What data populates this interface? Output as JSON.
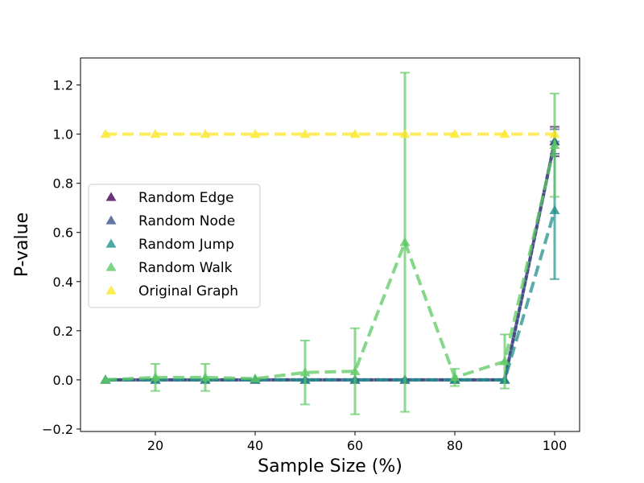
{
  "chart_data": {
    "type": "line",
    "title": "",
    "xlabel": "Sample Size (%)",
    "ylabel": "P-value",
    "xlim": [
      5,
      105
    ],
    "ylim": [
      -0.21,
      1.31
    ],
    "x_ticks": [
      20,
      40,
      60,
      80,
      100
    ],
    "y_ticks": [
      -0.2,
      0.0,
      0.2,
      0.4,
      0.6,
      0.8,
      1.0,
      1.2
    ],
    "y_tick_labels": [
      "−0.2",
      "0.0",
      "0.2",
      "0.4",
      "0.6",
      "0.8",
      "1.0",
      "1.2"
    ],
    "grid": false,
    "legend_position": "center-left",
    "x": [
      10,
      20,
      30,
      40,
      50,
      60,
      70,
      80,
      90,
      100
    ],
    "series": [
      {
        "name": "Random Edge",
        "color": "#440154",
        "linestyle": "dotted",
        "values": [
          0,
          0,
          0,
          0,
          0,
          0,
          0,
          0,
          0,
          0.97
        ],
        "errors": [
          0,
          0,
          0,
          0,
          0,
          0,
          0,
          0,
          0,
          0.06
        ]
      },
      {
        "name": "Random Node",
        "color": "#3b528b",
        "linestyle": "solid",
        "values": [
          0,
          0,
          0,
          0,
          0,
          0,
          0,
          0,
          0,
          0.97
        ],
        "errors": [
          0,
          0,
          0,
          0,
          0,
          0,
          0,
          0,
          0,
          0.05
        ]
      },
      {
        "name": "Random Jump",
        "color": "#21918c",
        "linestyle": "dashed",
        "values": [
          0,
          0,
          0,
          0,
          0,
          0,
          0,
          0,
          0,
          0.69
        ],
        "errors": [
          0,
          0,
          0,
          0,
          0,
          0,
          0,
          0,
          0,
          0.28
        ]
      },
      {
        "name": "Random Walk",
        "color": "#5ec962",
        "linestyle": "dashed",
        "values": [
          0,
          0.01,
          0.01,
          0.005,
          0.03,
          0.035,
          0.56,
          0.01,
          0.075,
          0.955
        ],
        "errors": [
          0,
          0.055,
          0.055,
          0.01,
          0.13,
          0.175,
          0.69,
          0.035,
          0.11,
          0.21
        ]
      },
      {
        "name": "Original Graph",
        "color": "#fde725",
        "linestyle": "dashed",
        "values": [
          1,
          1,
          1,
          1,
          1,
          1,
          1,
          1,
          1,
          1
        ],
        "errors": [
          0,
          0,
          0,
          0,
          0,
          0,
          0,
          0,
          0,
          0
        ]
      }
    ]
  }
}
